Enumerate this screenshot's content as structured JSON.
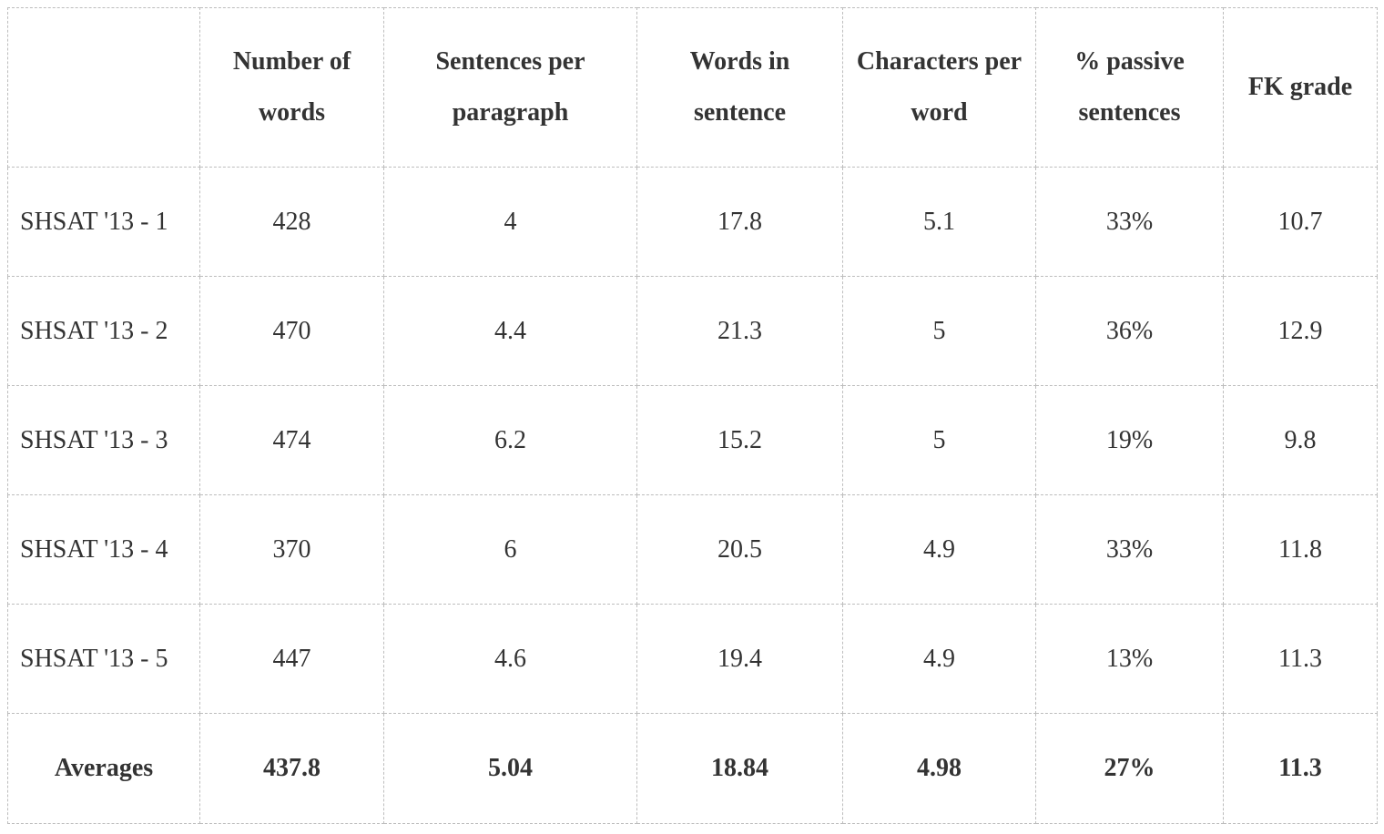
{
  "table": {
    "headers": [
      "",
      "Number of words",
      "Sentences per paragraph",
      "Words in sentence",
      "Characters per word",
      "% passive sentences",
      "FK grade"
    ],
    "rows": [
      {
        "label": "SHSAT '13 - 1",
        "cells": [
          "428",
          "4",
          "17.8",
          "5.1",
          "33%",
          "10.7"
        ]
      },
      {
        "label": "SHSAT '13 - 2",
        "cells": [
          "470",
          "4.4",
          "21.3",
          "5",
          "36%",
          "12.9"
        ]
      },
      {
        "label": "SHSAT '13 - 3",
        "cells": [
          "474",
          "6.2",
          "15.2",
          "5",
          "19%",
          "9.8"
        ]
      },
      {
        "label": "SHSAT '13 - 4",
        "cells": [
          "370",
          "6",
          "20.5",
          "4.9",
          "33%",
          "11.8"
        ]
      },
      {
        "label": "SHSAT '13 - 5",
        "cells": [
          "447",
          "4.6",
          "19.4",
          "4.9",
          "13%",
          "11.3"
        ]
      }
    ],
    "averages": {
      "label": "Averages",
      "cells": [
        "437.8",
        "5.04",
        "18.84",
        "4.98",
        "27%",
        "11.3"
      ]
    }
  }
}
